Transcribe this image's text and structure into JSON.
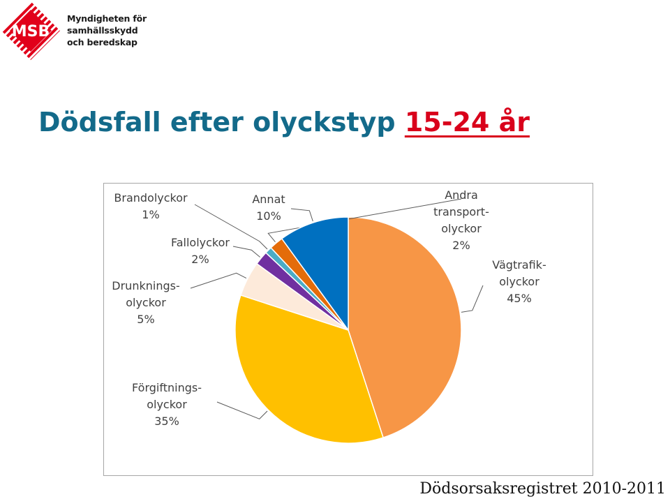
{
  "logo": {
    "abbr": "MSB",
    "lines": [
      "Myndigheten för",
      "samhällsskydd",
      "och beredskap"
    ],
    "color": "#e1001a"
  },
  "title": {
    "main": "Dödsfall efter olyckstyp",
    "highlight": "15-24 år",
    "main_color": "#136a8a",
    "highlight_color": "#d9001b"
  },
  "chart_data": {
    "type": "pie",
    "slices": [
      {
        "label": [
          "Vägtrafik-",
          "olyckor"
        ],
        "percent_label": "45%",
        "value": 45,
        "color": "#f79646"
      },
      {
        "label": [
          "Förgiftnings-",
          "olyckor"
        ],
        "percent_label": "35%",
        "value": 35,
        "color": "#ffc000"
      },
      {
        "label": [
          "Drunknings-",
          "olyckor"
        ],
        "percent_label": "5%",
        "value": 5,
        "color": "#fdeada"
      },
      {
        "label": [
          "Fallolyckor"
        ],
        "percent_label": "2%",
        "value": 2,
        "color": "#7030a0"
      },
      {
        "label": [
          "Brandolyckor"
        ],
        "percent_label": "1%",
        "value": 1,
        "color": "#4bacc6"
      },
      {
        "label": [
          "Andra",
          "transport-",
          "olyckor"
        ],
        "percent_label": "2%",
        "value": 2,
        "color": "#e46c0a"
      },
      {
        "label": [
          "Annat"
        ],
        "percent_label": "10%",
        "value": 10,
        "color": "#0070c0"
      }
    ]
  },
  "source": "Dödsorsaksregistret 2010-2011"
}
